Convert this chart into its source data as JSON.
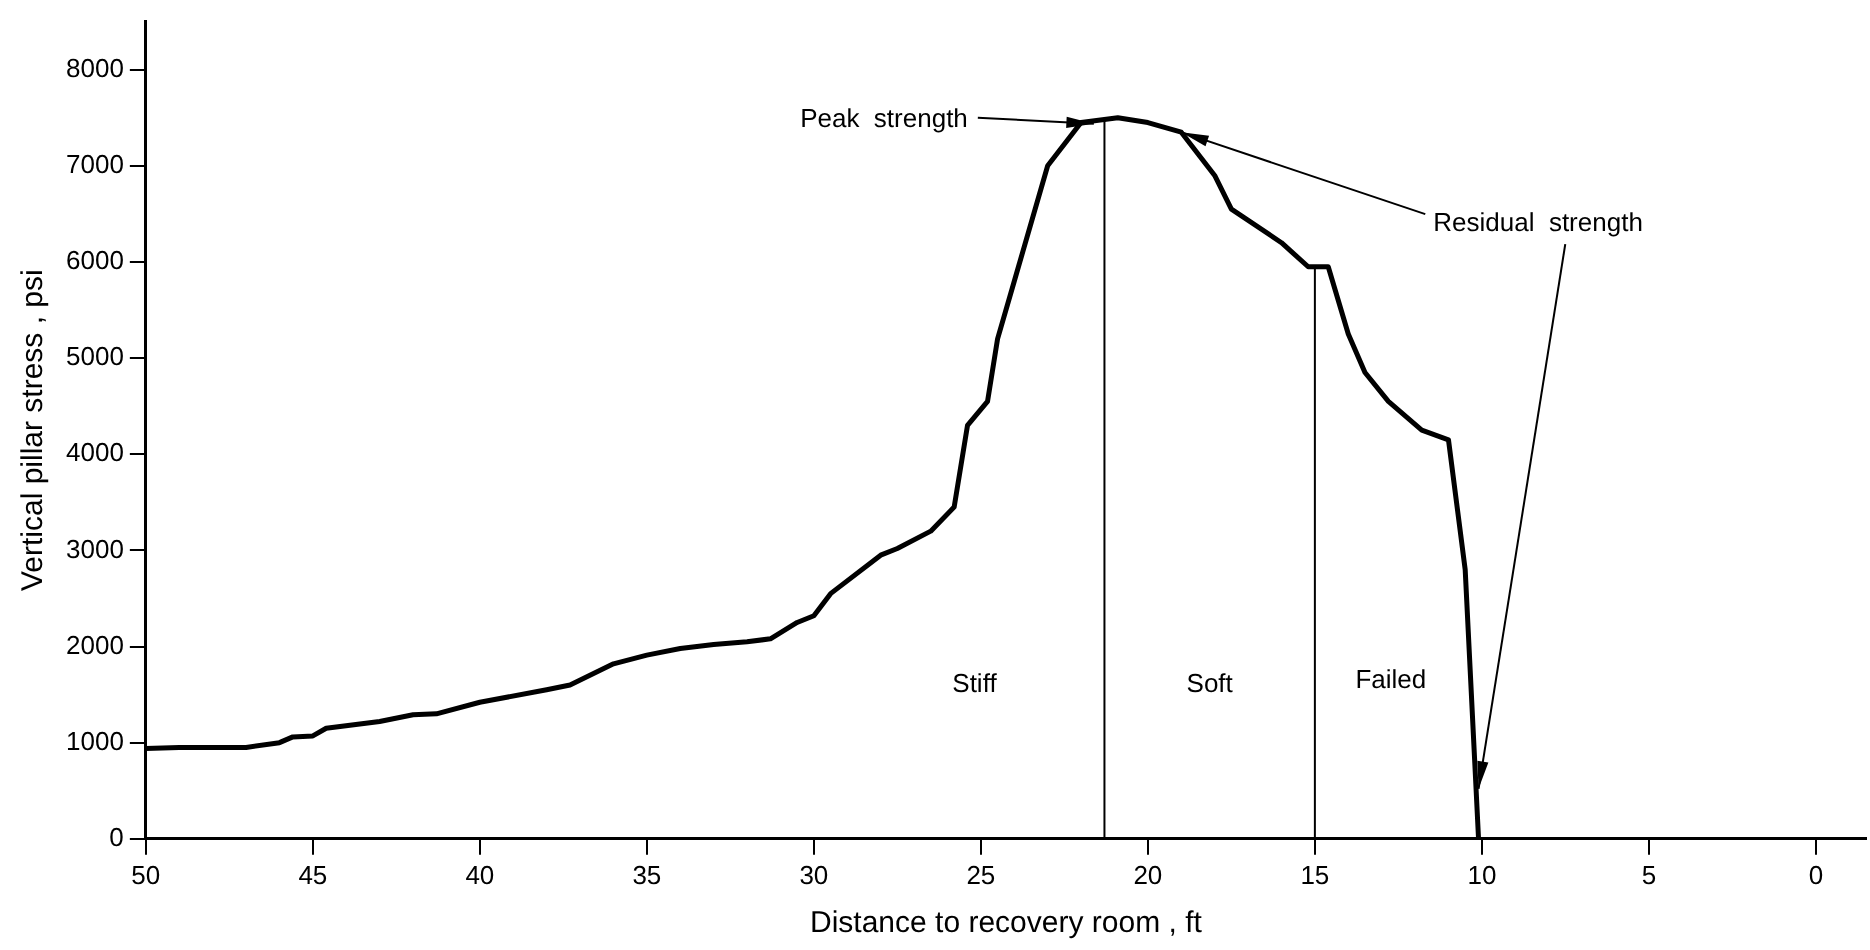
{
  "chart_data": {
    "type": "line",
    "xlabel": "Distance to recovery room , ft",
    "ylabel": "Vertical pillar stress , psi",
    "x": [
      50,
      49,
      48,
      47,
      46,
      45.6,
      45,
      44.6,
      43,
      42,
      41.3,
      40,
      38,
      37.3,
      36,
      35,
      34,
      33,
      32,
      31.3,
      30.5,
      30,
      29.5,
      28,
      27.5,
      26.5,
      25.8,
      25.4,
      24.8,
      24.5,
      24,
      23,
      22,
      20.9,
      20,
      19,
      18,
      17.5,
      16,
      15.2,
      14.6,
      14,
      13.5,
      12.8,
      11.8,
      11,
      10.5,
      10.1
    ],
    "series": [
      {
        "color": "#000000",
        "values": [
          940,
          950,
          950,
          950,
          1000,
          1060,
          1070,
          1150,
          1220,
          1290,
          1300,
          1420,
          1550,
          1600,
          1820,
          1910,
          1980,
          2020,
          2050,
          2080,
          2250,
          2320,
          2550,
          2950,
          3020,
          3200,
          3450,
          4300,
          4550,
          5200,
          5800,
          7000,
          7450,
          7500,
          7450,
          7350,
          6900,
          6550,
          6200,
          5950,
          5950,
          5250,
          4850,
          4550,
          4250,
          4150,
          2800,
          0
        ]
      }
    ],
    "xlim": [
      50,
      -1.5
    ],
    "xticks": [
      50,
      45,
      40,
      35,
      30,
      25,
      20,
      15,
      10,
      5,
      0
    ],
    "ylim": [
      0,
      8500
    ],
    "yticks": [
      0,
      1000,
      2000,
      3000,
      4000,
      5000,
      6000,
      7000,
      8000
    ],
    "grid": false,
    "legend": false,
    "marker": "none",
    "line_style": "solid",
    "ref_lines": [
      {
        "axis": "x",
        "value": 21.3,
        "color": "#000000"
      },
      {
        "axis": "x",
        "value": 15,
        "color": "#000000"
      }
    ],
    "annotations": [
      "Peak  strength",
      {
        "text": "Residual  strength",
        "x": 19,
        "y": 7350
      },
      "Stiff",
      "Soft",
      "Failed"
    ]
  }
}
